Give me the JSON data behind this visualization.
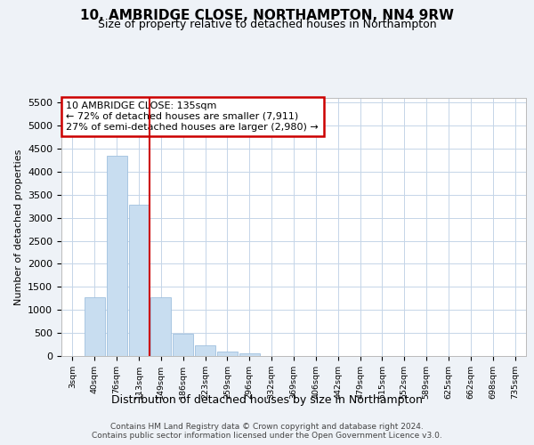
{
  "title": "10, AMBRIDGE CLOSE, NORTHAMPTON, NN4 9RW",
  "subtitle": "Size of property relative to detached houses in Northampton",
  "xlabel": "Distribution of detached houses by size in Northampton",
  "ylabel": "Number of detached properties",
  "bar_color": "#c8ddf0",
  "bar_edge_color": "#a0c0de",
  "marker_line_color": "#cc0000",
  "annotation_text": "10 AMBRIDGE CLOSE: 135sqm\n← 72% of detached houses are smaller (7,911)\n27% of semi-detached houses are larger (2,980) →",
  "annotation_box_color": "#ffffff",
  "annotation_border_color": "#cc0000",
  "categories": [
    "3sqm",
    "40sqm",
    "76sqm",
    "113sqm",
    "149sqm",
    "186sqm",
    "223sqm",
    "259sqm",
    "296sqm",
    "332sqm",
    "369sqm",
    "406sqm",
    "442sqm",
    "479sqm",
    "515sqm",
    "552sqm",
    "589sqm",
    "625sqm",
    "662sqm",
    "698sqm",
    "735sqm"
  ],
  "values": [
    0,
    1270,
    4340,
    3290,
    1280,
    480,
    230,
    95,
    60,
    0,
    0,
    0,
    0,
    0,
    0,
    0,
    0,
    0,
    0,
    0,
    0
  ],
  "marker_bin_index": 3,
  "ylim": [
    0,
    5600
  ],
  "yticks": [
    0,
    500,
    1000,
    1500,
    2000,
    2500,
    3000,
    3500,
    4000,
    4500,
    5000,
    5500
  ],
  "footer": "Contains HM Land Registry data © Crown copyright and database right 2024.\nContains public sector information licensed under the Open Government Licence v3.0.",
  "background_color": "#eef2f7",
  "plot_background": "#ffffff",
  "grid_color": "#c5d5e8"
}
